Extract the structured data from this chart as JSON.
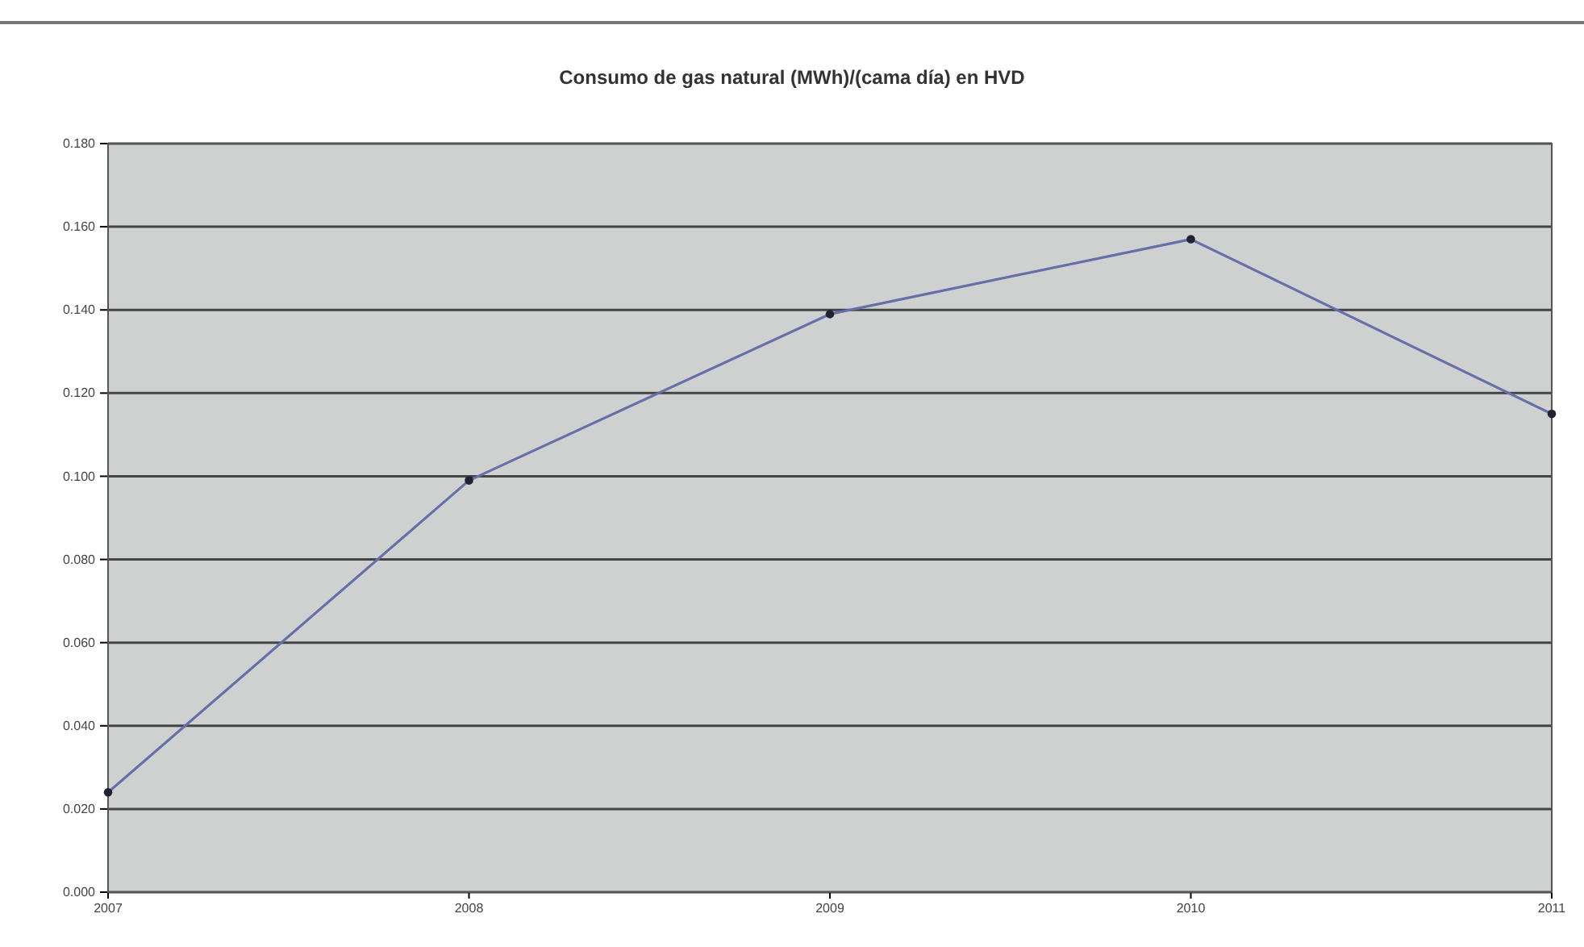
{
  "chart_data": {
    "type": "line",
    "title": "Consumo de gas natural (MWh)/(cama día) en HVD",
    "categories": [
      "2007",
      "2008",
      "2009",
      "2010",
      "2011"
    ],
    "series": [
      {
        "color": "#6670a8",
        "values": [
          0.024,
          0.099,
          0.139,
          0.157,
          0.115
        ]
      }
    ],
    "ylim": [
      0,
      0.18
    ],
    "yticks": [
      {
        "value": 0,
        "label": "0.000"
      },
      {
        "value": 0.02,
        "label": "0.020"
      },
      {
        "value": 0.04,
        "label": "0.040"
      },
      {
        "value": 0.06,
        "label": "0.060"
      },
      {
        "value": 0.08,
        "label": "0.080"
      },
      {
        "value": 0.1,
        "label": "0.100"
      },
      {
        "value": 0.12,
        "label": "0.120"
      },
      {
        "value": 0.14,
        "label": "0.140"
      },
      {
        "value": 0.16,
        "label": "0.160"
      },
      {
        "value": 0.18,
        "label": "0.180"
      }
    ],
    "grid": "y",
    "marker": "circle",
    "legend": false
  }
}
